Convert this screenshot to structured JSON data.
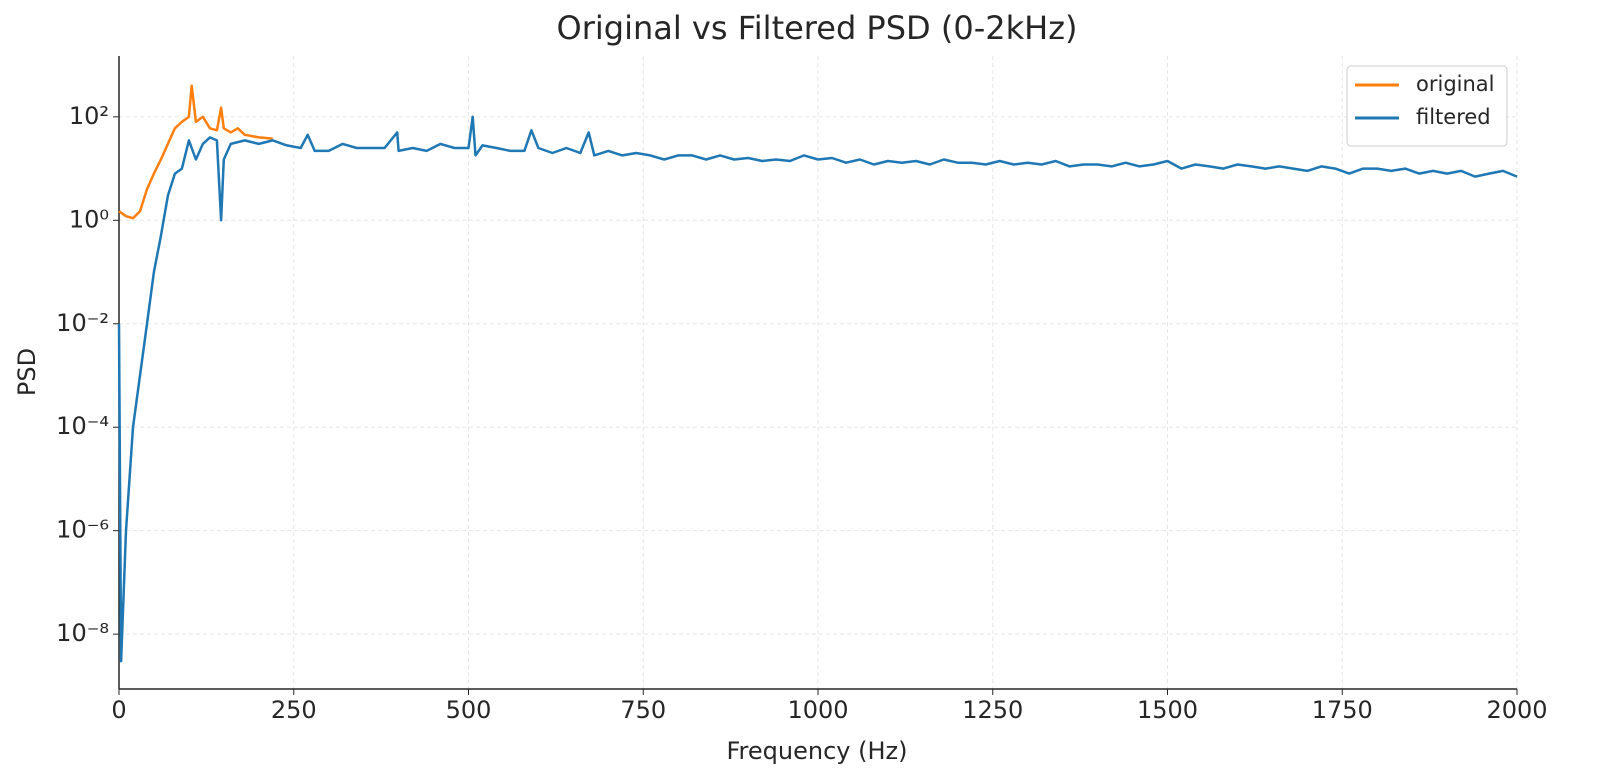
{
  "chart_data": {
    "type": "line",
    "title": "Original vs Filtered PSD (0-2kHz)",
    "xlabel": "Frequency (Hz)",
    "ylabel": "PSD",
    "log_y": true,
    "grid": true,
    "legend": "upper right",
    "xlim": [
      0,
      2000
    ],
    "xticks": [
      0,
      250,
      500,
      750,
      1000,
      1250,
      1500,
      1750,
      2000
    ],
    "ylim": [
      8.7e-10,
      1500
    ],
    "yticks": [
      {
        "value": 1e-08,
        "label": "10⁻⁸"
      },
      {
        "value": 1e-06,
        "label": "10⁻⁶"
      },
      {
        "value": 0.0001,
        "label": "10⁻⁴"
      },
      {
        "value": 0.01,
        "label": "10⁻²"
      },
      {
        "value": 1,
        "label": "10⁰"
      },
      {
        "value": 100,
        "label": "10²"
      }
    ],
    "series": [
      {
        "name": "original",
        "color": "#ff7f0e",
        "x": [
          0,
          10,
          20,
          30,
          40,
          50,
          60,
          70,
          80,
          90,
          100,
          104,
          110,
          120,
          130,
          140,
          146,
          150,
          160,
          170,
          180,
          200,
          220
        ],
        "values": [
          1.5,
          1.2,
          1.1,
          1.5,
          4,
          8,
          15,
          30,
          60,
          80,
          100,
          400,
          80,
          100,
          60,
          55,
          150,
          60,
          50,
          60,
          45,
          40,
          38
        ]
      },
      {
        "name": "filtered",
        "color": "#1f77b4",
        "x": [
          0,
          3,
          10,
          20,
          30,
          40,
          50,
          60,
          70,
          80,
          90,
          100,
          110,
          120,
          130,
          140,
          146,
          150,
          160,
          180,
          200,
          220,
          240,
          260,
          270,
          280,
          300,
          320,
          340,
          360,
          380,
          398,
          400,
          420,
          440,
          460,
          480,
          500,
          506,
          510,
          520,
          540,
          560,
          580,
          590,
          600,
          620,
          640,
          660,
          672,
          680,
          700,
          720,
          740,
          760,
          780,
          800,
          820,
          840,
          860,
          880,
          900,
          920,
          940,
          960,
          980,
          1000,
          1020,
          1040,
          1060,
          1080,
          1100,
          1120,
          1140,
          1160,
          1180,
          1200,
          1220,
          1240,
          1260,
          1280,
          1300,
          1320,
          1340,
          1360,
          1380,
          1400,
          1420,
          1440,
          1460,
          1480,
          1500,
          1520,
          1540,
          1560,
          1580,
          1600,
          1620,
          1640,
          1660,
          1680,
          1700,
          1720,
          1740,
          1760,
          1780,
          1800,
          1820,
          1840,
          1860,
          1880,
          1900,
          1920,
          1940,
          1960,
          1980,
          2000
        ],
        "values": [
          0.01,
          3e-09,
          1e-06,
          0.0001,
          0.001,
          0.01,
          0.1,
          0.5,
          3,
          8,
          10,
          35,
          15,
          30,
          40,
          35,
          1,
          15,
          30,
          35,
          30,
          35,
          28,
          25,
          45,
          22,
          22,
          30,
          25,
          25,
          25,
          50,
          22,
          25,
          22,
          30,
          25,
          25,
          100,
          18,
          28,
          25,
          22,
          22,
          55,
          25,
          20,
          25,
          20,
          50,
          18,
          22,
          18,
          20,
          18,
          15,
          18,
          18,
          15,
          18,
          15,
          16,
          14,
          15,
          14,
          18,
          15,
          16,
          13,
          15,
          12,
          14,
          13,
          14,
          12,
          15,
          13,
          13,
          12,
          14,
          12,
          13,
          12,
          14,
          11,
          12,
          12,
          11,
          13,
          11,
          12,
          14,
          10,
          12,
          11,
          10,
          12,
          11,
          10,
          11,
          10,
          9,
          11,
          10,
          8,
          10,
          10,
          9,
          10,
          8,
          9,
          8,
          9,
          7,
          8,
          9,
          7
        ]
      }
    ]
  }
}
